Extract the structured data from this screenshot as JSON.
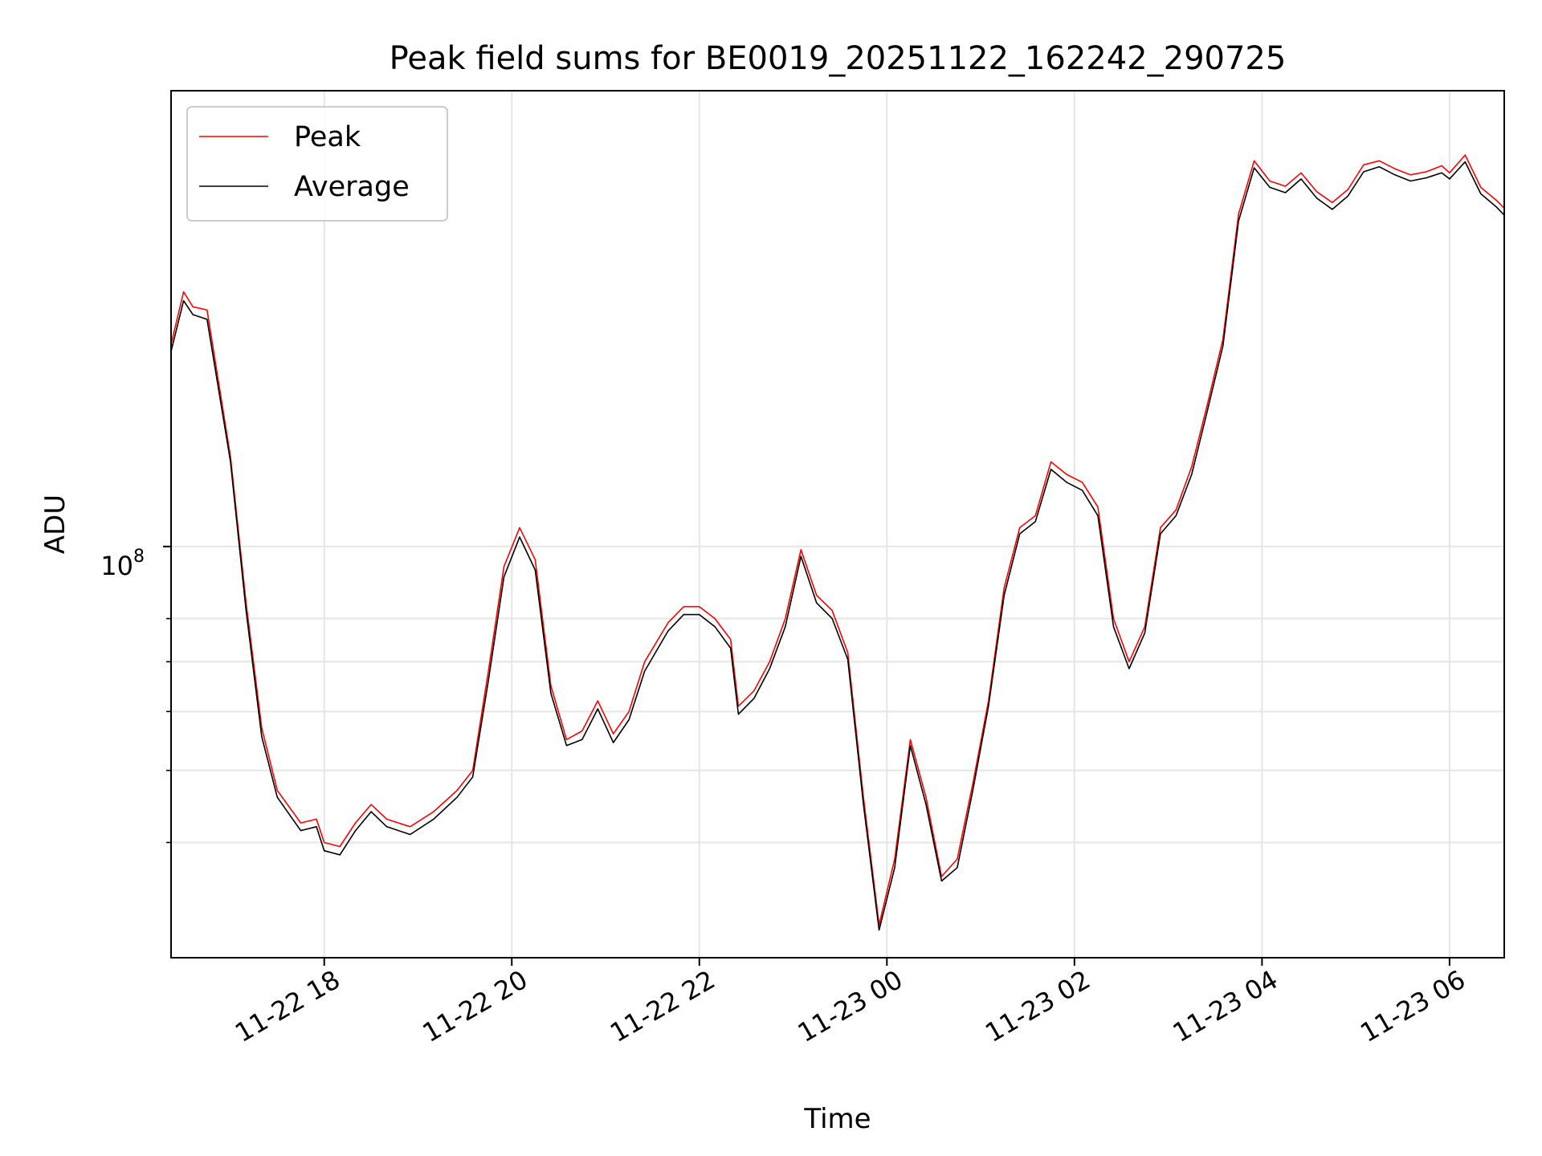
{
  "chart_data": {
    "type": "line",
    "title": "Peak field sums for BE0019_20251122_162242_290725",
    "xlabel": "Time",
    "ylabel": "ADU",
    "y_scale": "log",
    "ylim": [
      28000000,
      410000000
    ],
    "xlim": [
      "2025-11-22 16:22",
      "2025-11-23 06:35"
    ],
    "x_ticks": [
      "11-22 18",
      "11-22 20",
      "11-22 22",
      "11-23 00",
      "11-23 02",
      "11-23 04",
      "11-23 06"
    ],
    "y_major_tick_label": "10",
    "y_major_tick_exponent": "8",
    "y_major_tick_value": 100000000,
    "y_minor_tick_values": [
      40000000,
      50000000,
      60000000,
      70000000,
      80000000
    ],
    "grid": true,
    "legend_position": "upper-left",
    "series": [
      {
        "name": "Peak",
        "color": "#ff0000",
        "points": [
          [
            "2025-11-22 16:22",
            187000000
          ],
          [
            "2025-11-22 16:30",
            220000000
          ],
          [
            "2025-11-22 16:36",
            210000000
          ],
          [
            "2025-11-22 16:45",
            208000000
          ],
          [
            "2025-11-22 17:00",
            132000000
          ],
          [
            "2025-11-22 17:10",
            84000000
          ],
          [
            "2025-11-22 17:20",
            57000000
          ],
          [
            "2025-11-22 17:30",
            47000000
          ],
          [
            "2025-11-22 17:45",
            42500000
          ],
          [
            "2025-11-22 17:55",
            43000000
          ],
          [
            "2025-11-22 18:00",
            40000000
          ],
          [
            "2025-11-22 18:10",
            39500000
          ],
          [
            "2025-11-22 18:20",
            42500000
          ],
          [
            "2025-11-22 18:30",
            45000000
          ],
          [
            "2025-11-22 18:40",
            43000000
          ],
          [
            "2025-11-22 18:55",
            42000000
          ],
          [
            "2025-11-22 19:10",
            44000000
          ],
          [
            "2025-11-22 19:25",
            47000000
          ],
          [
            "2025-11-22 19:35",
            50000000
          ],
          [
            "2025-11-22 19:45",
            68000000
          ],
          [
            "2025-11-22 19:55",
            94000000
          ],
          [
            "2025-11-22 20:05",
            106000000
          ],
          [
            "2025-11-22 20:15",
            96000000
          ],
          [
            "2025-11-22 20:25",
            65000000
          ],
          [
            "2025-11-22 20:35",
            55000000
          ],
          [
            "2025-11-22 20:45",
            56500000
          ],
          [
            "2025-11-22 20:55",
            62000000
          ],
          [
            "2025-11-22 21:05",
            56000000
          ],
          [
            "2025-11-22 21:15",
            60000000
          ],
          [
            "2025-11-22 21:25",
            70000000
          ],
          [
            "2025-11-22 21:40",
            79000000
          ],
          [
            "2025-11-22 21:50",
            83000000
          ],
          [
            "2025-11-22 22:00",
            83000000
          ],
          [
            "2025-11-22 22:10",
            80000000
          ],
          [
            "2025-11-22 22:20",
            75000000
          ],
          [
            "2025-11-22 22:25",
            61000000
          ],
          [
            "2025-11-22 22:35",
            64000000
          ],
          [
            "2025-11-22 22:45",
            70000000
          ],
          [
            "2025-11-22 22:55",
            80000000
          ],
          [
            "2025-11-22 23:05",
            99000000
          ],
          [
            "2025-11-22 23:15",
            86000000
          ],
          [
            "2025-11-22 23:25",
            82000000
          ],
          [
            "2025-11-22 23:35",
            72000000
          ],
          [
            "2025-11-22 23:45",
            46000000
          ],
          [
            "2025-11-22 23:55",
            31000000
          ],
          [
            "2025-11-23 00:05",
            38000000
          ],
          [
            "2025-11-23 00:15",
            55000000
          ],
          [
            "2025-11-23 00:25",
            46000000
          ],
          [
            "2025-11-23 00:35",
            36000000
          ],
          [
            "2025-11-23 00:45",
            38000000
          ],
          [
            "2025-11-23 00:55",
            48000000
          ],
          [
            "2025-11-23 01:05",
            62000000
          ],
          [
            "2025-11-23 01:15",
            88000000
          ],
          [
            "2025-11-23 01:25",
            106000000
          ],
          [
            "2025-11-23 01:35",
            110000000
          ],
          [
            "2025-11-23 01:45",
            130000000
          ],
          [
            "2025-11-23 01:55",
            125000000
          ],
          [
            "2025-11-23 02:05",
            122000000
          ],
          [
            "2025-11-23 02:15",
            113000000
          ],
          [
            "2025-11-23 02:25",
            80000000
          ],
          [
            "2025-11-23 02:35",
            70000000
          ],
          [
            "2025-11-23 02:45",
            78000000
          ],
          [
            "2025-11-23 02:55",
            106000000
          ],
          [
            "2025-11-23 03:05",
            112000000
          ],
          [
            "2025-11-23 03:15",
            128000000
          ],
          [
            "2025-11-23 03:25",
            155000000
          ],
          [
            "2025-11-23 03:35",
            190000000
          ],
          [
            "2025-11-23 03:45",
            280000000
          ],
          [
            "2025-11-23 03:55",
            330000000
          ],
          [
            "2025-11-23 04:05",
            310000000
          ],
          [
            "2025-11-23 04:15",
            305000000
          ],
          [
            "2025-11-23 04:25",
            318000000
          ],
          [
            "2025-11-23 04:35",
            300000000
          ],
          [
            "2025-11-23 04:45",
            290000000
          ],
          [
            "2025-11-23 04:55",
            302000000
          ],
          [
            "2025-11-23 05:05",
            326000000
          ],
          [
            "2025-11-23 05:15",
            330000000
          ],
          [
            "2025-11-23 05:25",
            322000000
          ],
          [
            "2025-11-23 05:35",
            316000000
          ],
          [
            "2025-11-23 05:45",
            319000000
          ],
          [
            "2025-11-23 05:55",
            325000000
          ],
          [
            "2025-11-23 06:00",
            318000000
          ],
          [
            "2025-11-23 06:10",
            336000000
          ],
          [
            "2025-11-23 06:20",
            304000000
          ],
          [
            "2025-11-23 06:30",
            292000000
          ],
          [
            "2025-11-23 06:35",
            285000000
          ]
        ]
      },
      {
        "name": "Average",
        "color": "#000000",
        "points": [
          [
            "2025-11-22 16:22",
            183000000
          ],
          [
            "2025-11-22 16:30",
            214000000
          ],
          [
            "2025-11-22 16:36",
            205000000
          ],
          [
            "2025-11-22 16:45",
            202000000
          ],
          [
            "2025-11-22 17:00",
            130000000
          ],
          [
            "2025-11-22 17:10",
            82000000
          ],
          [
            "2025-11-22 17:20",
            55500000
          ],
          [
            "2025-11-22 17:30",
            46000000
          ],
          [
            "2025-11-22 17:45",
            41500000
          ],
          [
            "2025-11-22 17:55",
            42000000
          ],
          [
            "2025-11-22 18:00",
            39000000
          ],
          [
            "2025-11-22 18:10",
            38500000
          ],
          [
            "2025-11-22 18:20",
            41500000
          ],
          [
            "2025-11-22 18:30",
            44000000
          ],
          [
            "2025-11-22 18:40",
            42000000
          ],
          [
            "2025-11-22 18:55",
            41000000
          ],
          [
            "2025-11-22 19:10",
            43000000
          ],
          [
            "2025-11-22 19:25",
            46000000
          ],
          [
            "2025-11-22 19:35",
            49000000
          ],
          [
            "2025-11-22 19:45",
            66000000
          ],
          [
            "2025-11-22 19:55",
            91000000
          ],
          [
            "2025-11-22 20:05",
            103000000
          ],
          [
            "2025-11-22 20:15",
            93000000
          ],
          [
            "2025-11-22 20:25",
            63500000
          ],
          [
            "2025-11-22 20:35",
            54000000
          ],
          [
            "2025-11-22 20:45",
            55000000
          ],
          [
            "2025-11-22 20:55",
            60500000
          ],
          [
            "2025-11-22 21:05",
            54500000
          ],
          [
            "2025-11-22 21:15",
            58500000
          ],
          [
            "2025-11-22 21:25",
            68000000
          ],
          [
            "2025-11-22 21:40",
            77000000
          ],
          [
            "2025-11-22 21:50",
            81000000
          ],
          [
            "2025-11-22 22:00",
            81000000
          ],
          [
            "2025-11-22 22:10",
            78000000
          ],
          [
            "2025-11-22 22:20",
            73000000
          ],
          [
            "2025-11-22 22:25",
            59500000
          ],
          [
            "2025-11-22 22:35",
            62500000
          ],
          [
            "2025-11-22 22:45",
            68500000
          ],
          [
            "2025-11-22 22:55",
            78000000
          ],
          [
            "2025-11-22 23:05",
            97000000
          ],
          [
            "2025-11-22 23:15",
            84000000
          ],
          [
            "2025-11-22 23:25",
            80000000
          ],
          [
            "2025-11-22 23:35",
            70500000
          ],
          [
            "2025-11-22 23:45",
            45000000
          ],
          [
            "2025-11-22 23:55",
            30500000
          ],
          [
            "2025-11-23 00:05",
            37000000
          ],
          [
            "2025-11-23 00:15",
            54000000
          ],
          [
            "2025-11-23 00:25",
            45000000
          ],
          [
            "2025-11-23 00:35",
            35500000
          ],
          [
            "2025-11-23 00:45",
            37000000
          ],
          [
            "2025-11-23 00:55",
            47000000
          ],
          [
            "2025-11-23 01:05",
            61000000
          ],
          [
            "2025-11-23 01:15",
            86000000
          ],
          [
            "2025-11-23 01:25",
            104000000
          ],
          [
            "2025-11-23 01:35",
            108000000
          ],
          [
            "2025-11-23 01:45",
            127000000
          ],
          [
            "2025-11-23 01:55",
            122000000
          ],
          [
            "2025-11-23 02:05",
            119000000
          ],
          [
            "2025-11-23 02:15",
            110000000
          ],
          [
            "2025-11-23 02:25",
            78000000
          ],
          [
            "2025-11-23 02:35",
            68500000
          ],
          [
            "2025-11-23 02:45",
            76500000
          ],
          [
            "2025-11-23 02:55",
            104000000
          ],
          [
            "2025-11-23 03:05",
            110000000
          ],
          [
            "2025-11-23 03:15",
            125000000
          ],
          [
            "2025-11-23 03:25",
            152000000
          ],
          [
            "2025-11-23 03:35",
            186000000
          ],
          [
            "2025-11-23 03:45",
            274000000
          ],
          [
            "2025-11-23 03:55",
            323000000
          ],
          [
            "2025-11-23 04:05",
            304000000
          ],
          [
            "2025-11-23 04:15",
            299000000
          ],
          [
            "2025-11-23 04:25",
            312000000
          ],
          [
            "2025-11-23 04:35",
            294000000
          ],
          [
            "2025-11-23 04:45",
            284000000
          ],
          [
            "2025-11-23 04:55",
            296000000
          ],
          [
            "2025-11-23 05:05",
            319000000
          ],
          [
            "2025-11-23 05:15",
            324000000
          ],
          [
            "2025-11-23 05:25",
            316000000
          ],
          [
            "2025-11-23 05:35",
            310000000
          ],
          [
            "2025-11-23 05:45",
            313000000
          ],
          [
            "2025-11-23 05:55",
            318000000
          ],
          [
            "2025-11-23 06:00",
            312000000
          ],
          [
            "2025-11-23 06:10",
            329000000
          ],
          [
            "2025-11-23 06:20",
            298000000
          ],
          [
            "2025-11-23 06:30",
            286000000
          ],
          [
            "2025-11-23 06:35",
            279000000
          ]
        ]
      }
    ]
  }
}
